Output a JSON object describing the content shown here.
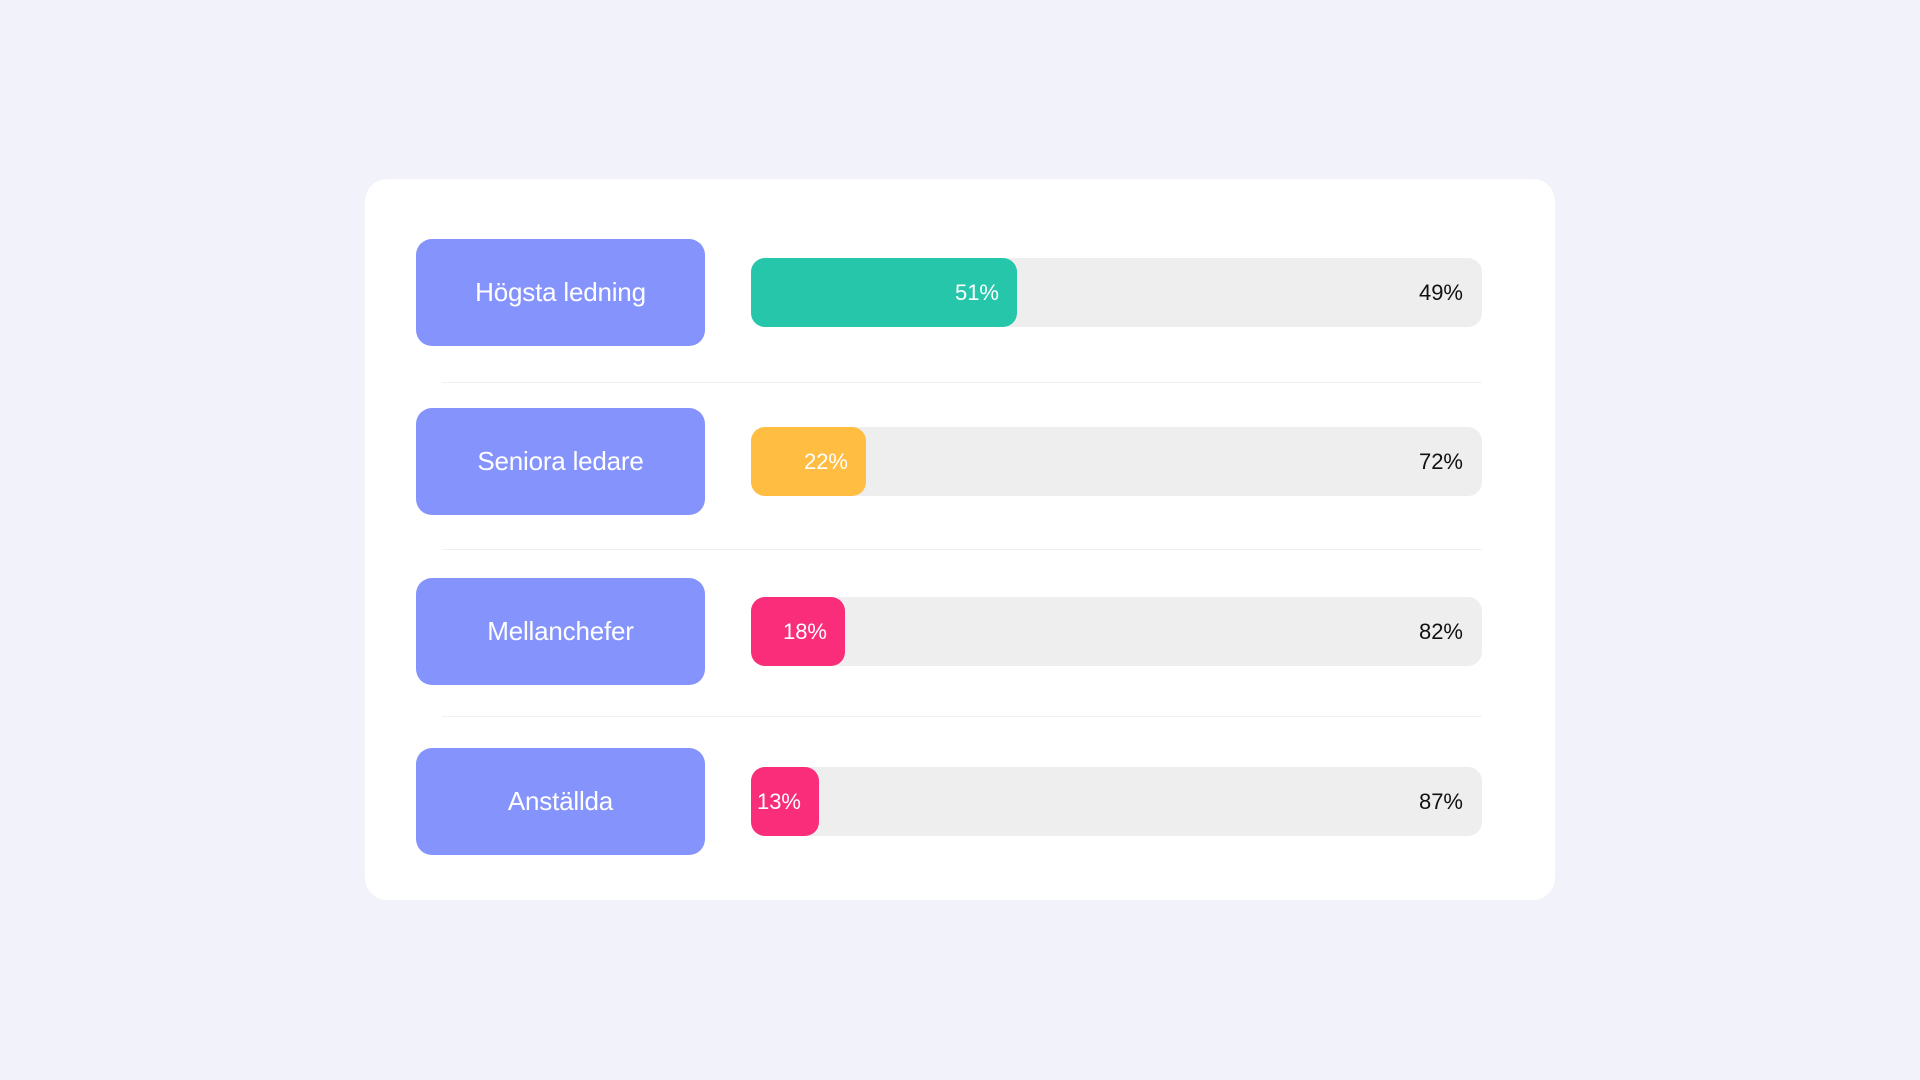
{
  "chart_data": {
    "type": "bar",
    "categories": [
      "Högsta ledning",
      "Seniora ledare",
      "Mellanchefer",
      "Anställda"
    ],
    "series": [
      {
        "values": [
          51,
          22,
          18,
          13
        ],
        "labels": [
          "51%",
          "22%",
          "18%",
          "13%"
        ],
        "colors": [
          "#26c6aa",
          "#ffbd42",
          "#f92d7a",
          "#f92d7a"
        ]
      },
      {
        "values": [
          49,
          72,
          82,
          87
        ],
        "labels": [
          "49%",
          "72%",
          "82%",
          "87%"
        ],
        "color": "#eeeeee"
      }
    ],
    "label_color": "#8593fd",
    "ylim": [
      0,
      100
    ]
  }
}
